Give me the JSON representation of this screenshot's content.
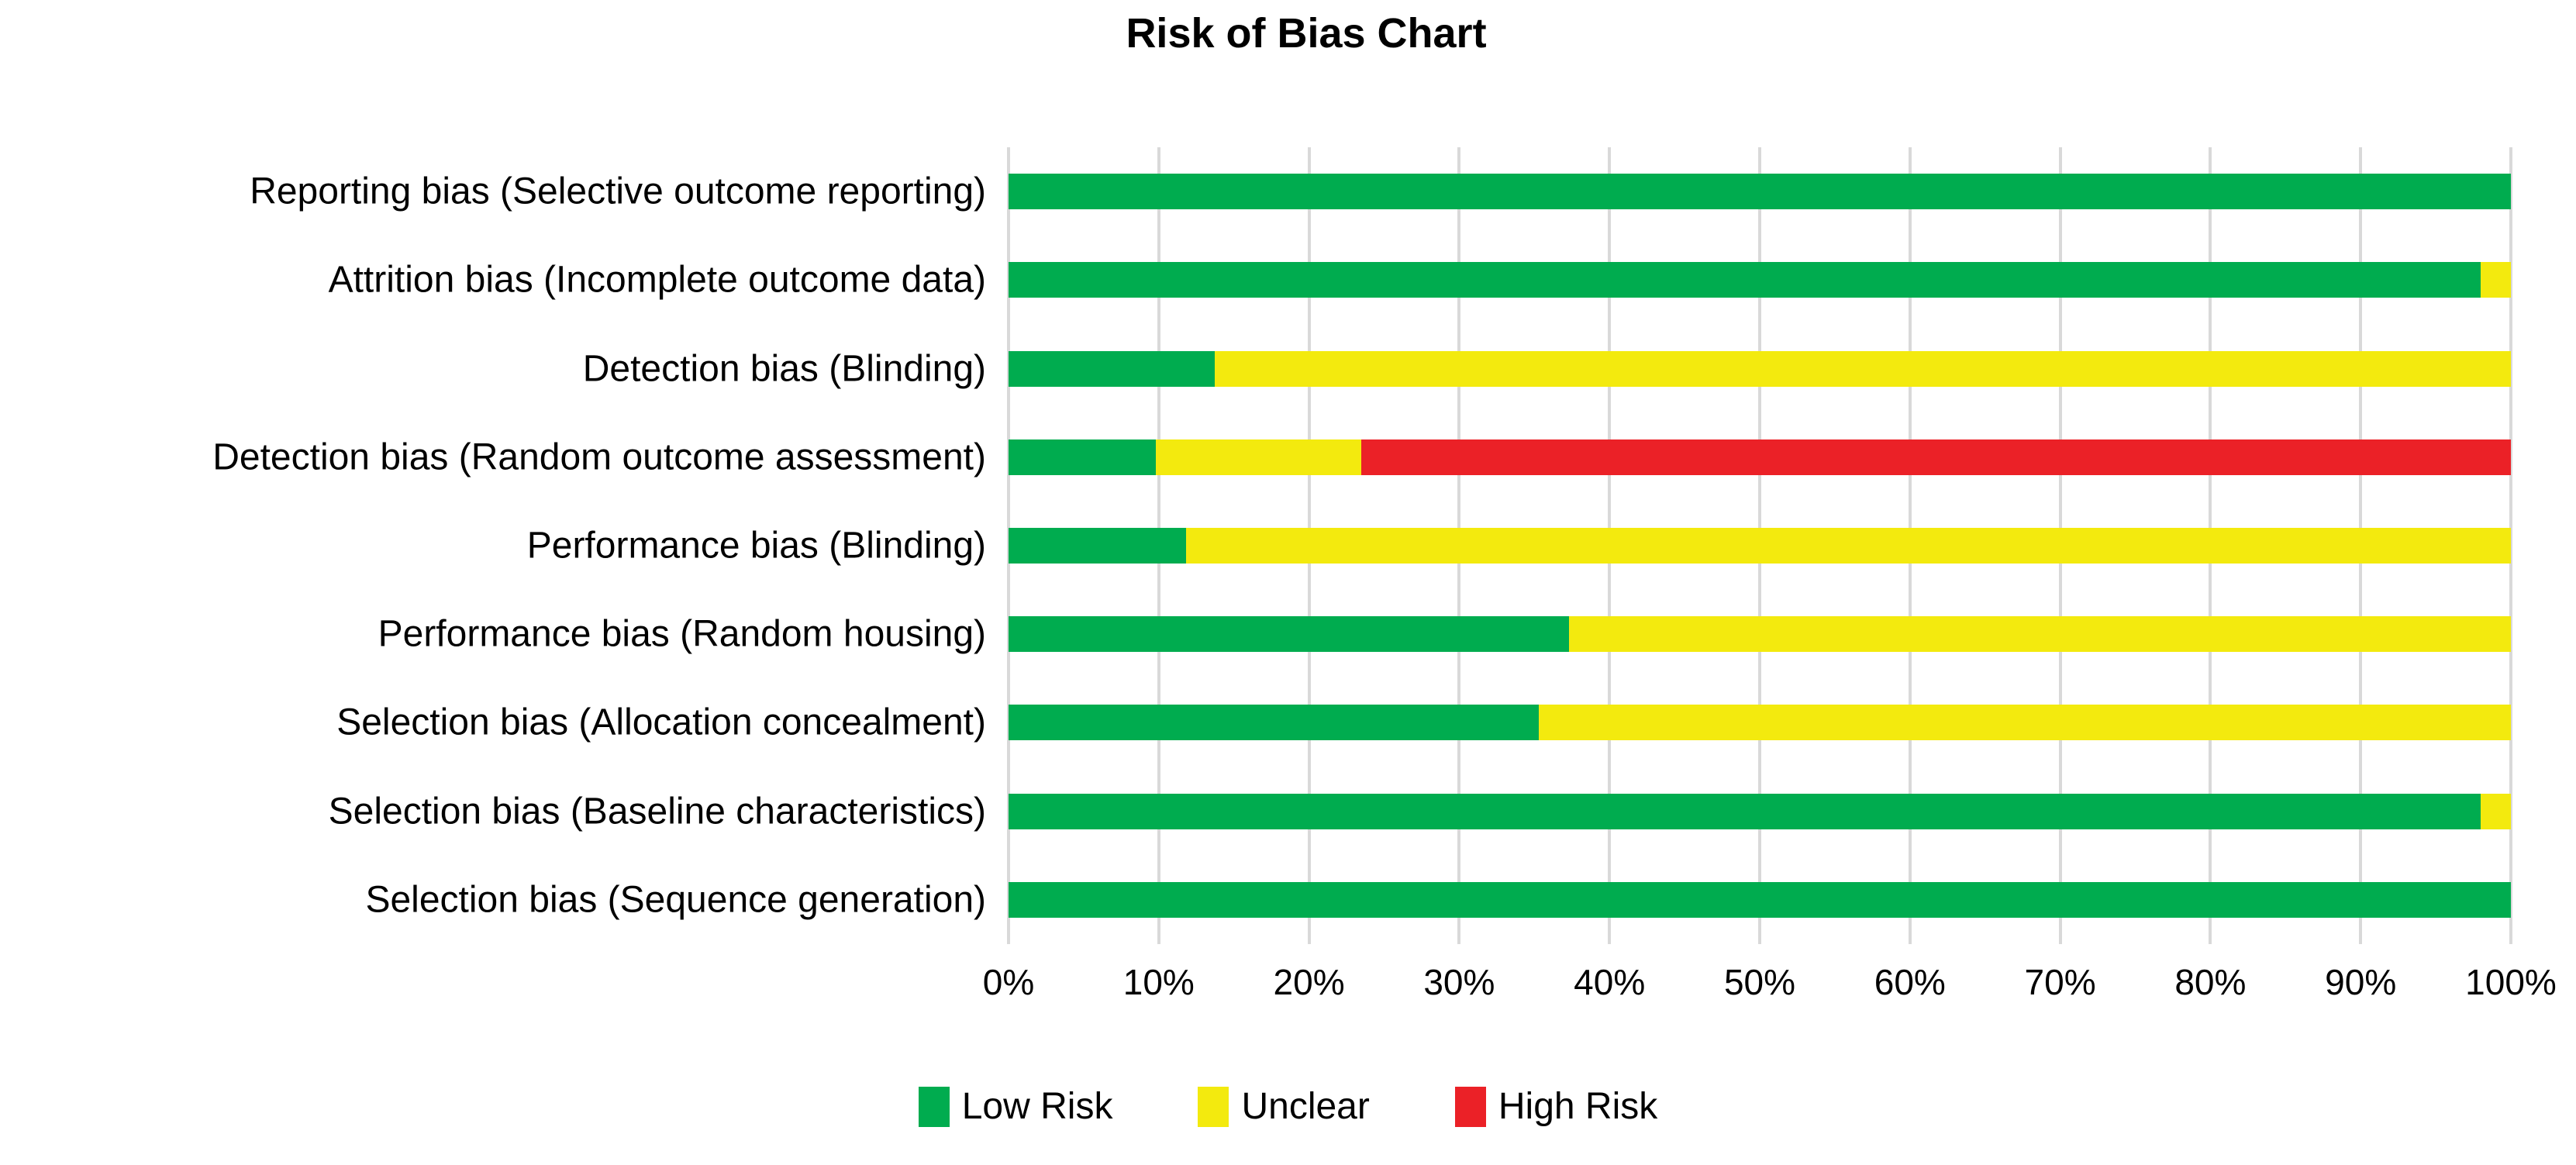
{
  "title": "Risk of Bias Chart",
  "chart_data": {
    "type": "bar",
    "orientation": "horizontal",
    "stacked": true,
    "title": "Risk of Bias Chart",
    "categories": [
      "Reporting bias (Selective outcome reporting)",
      "Attrition bias (Incomplete outcome data)",
      "Detection bias (Blinding)",
      "Detection bias (Random outcome assessment)",
      "Performance bias (Blinding)",
      "Performance bias (Random housing)",
      "Selection bias (Allocation concealment)",
      "Selection bias (Baseline characteristics)",
      "Selection bias (Sequence generation)"
    ],
    "series": [
      {
        "name": "Low Risk",
        "color": "#00AC4F",
        "values": [
          100,
          98,
          13.7,
          9.8,
          11.8,
          37.3,
          35.3,
          98,
          100
        ]
      },
      {
        "name": "Unclear",
        "color": "#F3EA0E",
        "values": [
          0,
          2,
          86.3,
          13.7,
          88.2,
          62.7,
          64.7,
          2,
          0
        ]
      },
      {
        "name": "High Risk",
        "color": "#EB2127",
        "values": [
          0,
          0,
          0,
          76.5,
          0,
          0,
          0,
          0,
          0
        ]
      }
    ],
    "x_ticks": [
      "0%",
      "10%",
      "20%",
      "30%",
      "40%",
      "50%",
      "60%",
      "70%",
      "80%",
      "90%",
      "100%"
    ],
    "xlim": [
      0,
      100
    ],
    "grid": "vertical",
    "gridline_color": "#D9D9D9",
    "legend_position": "bottom",
    "legend": [
      {
        "label": "Low Risk",
        "color": "#00AC4F"
      },
      {
        "label": "Unclear",
        "color": "#F3EA0E"
      },
      {
        "label": "High Risk",
        "color": "#EB2127"
      }
    ]
  }
}
